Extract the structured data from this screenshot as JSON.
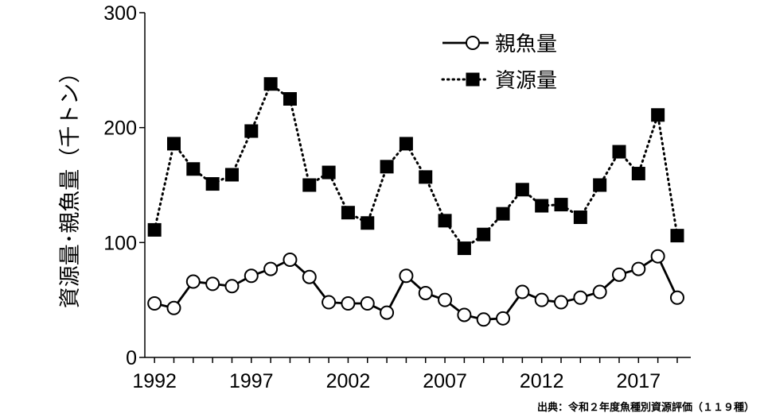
{
  "chart_data": {
    "type": "line",
    "title": "",
    "xlabel": "",
    "ylabel": "資源量･親魚量（千トン）",
    "x": [
      1992,
      1993,
      1994,
      1995,
      1996,
      1997,
      1998,
      1999,
      2000,
      2001,
      2002,
      2003,
      2004,
      2005,
      2006,
      2007,
      2008,
      2009,
      2010,
      2011,
      2012,
      2013,
      2014,
      2015,
      2016,
      2017,
      2018,
      2019
    ],
    "xlim": [
      1991.5,
      2019.7
    ],
    "xticks": [
      1992,
      1997,
      2002,
      2007,
      2012,
      2017
    ],
    "xtick_labels": [
      "1992",
      "1997",
      "2002",
      "2007",
      "2012",
      "2017"
    ],
    "ylim": [
      0,
      300
    ],
    "yticks": [
      0,
      100,
      200,
      300
    ],
    "ytick_labels": [
      "0",
      "100",
      "200",
      "300"
    ],
    "grid": false,
    "legend_position": "top-right",
    "series": [
      {
        "name": "親魚量",
        "marker": "circle-open",
        "line": "solid",
        "color": "#000000",
        "values": [
          47,
          43,
          66,
          64,
          62,
          71,
          77,
          85,
          70,
          48,
          47,
          47,
          39,
          71,
          56,
          50,
          37,
          33,
          34,
          57,
          50,
          48,
          52,
          57,
          72,
          77,
          88,
          52
        ]
      },
      {
        "name": "資源量",
        "marker": "square-filled",
        "line": "dotted",
        "color": "#000000",
        "values": [
          111,
          186,
          164,
          151,
          159,
          197,
          238,
          225,
          150,
          161,
          126,
          117,
          166,
          186,
          157,
          119,
          95,
          107,
          125,
          146,
          132,
          133,
          122,
          150,
          179,
          160,
          211,
          106
        ]
      }
    ]
  },
  "source_note": "出典：令和２年度魚種別資源評価（１１９種）"
}
